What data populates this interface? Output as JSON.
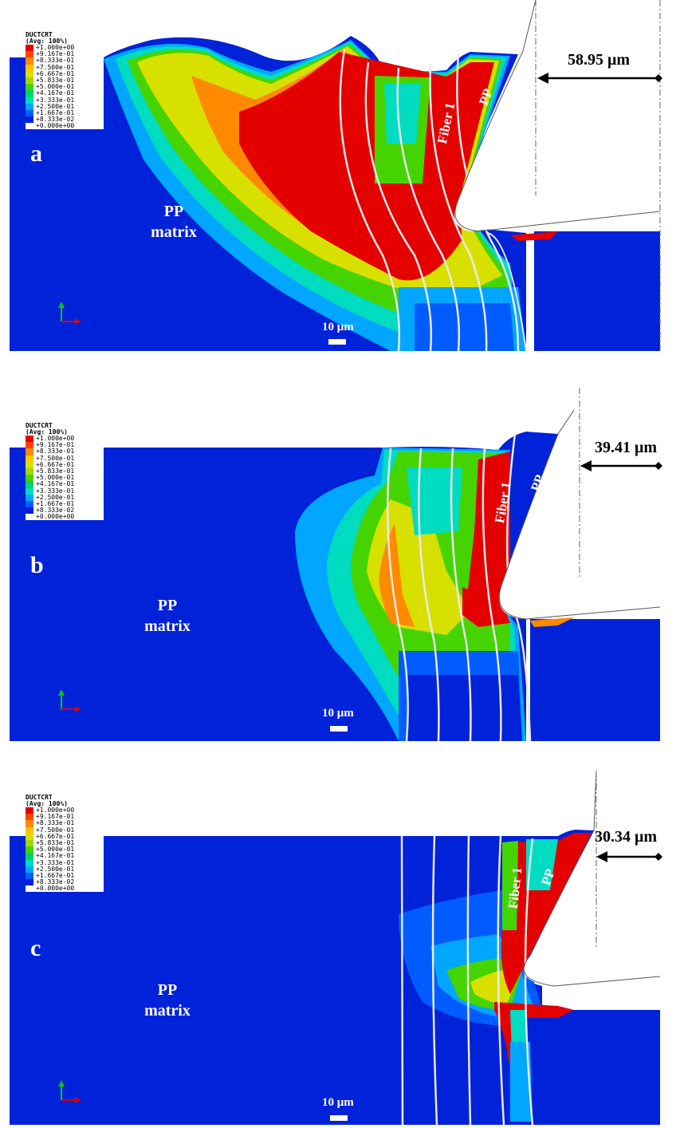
{
  "legend": {
    "title_line1": "DUCTCRT",
    "title_line2": "(Avg: 100%)",
    "entries": [
      "+1.000e+00",
      "+9.167e-01",
      "+8.333e-01",
      "+7.500e-01",
      "+6.667e-01",
      "+5.833e-01",
      "+5.000e-01",
      "+4.167e-01",
      "+3.333e-01",
      "+2.500e-01",
      "+1.667e-01",
      "+8.333e-02",
      "+0.000e+00"
    ],
    "colors": [
      "#e50000",
      "#ff4400",
      "#ff8a00",
      "#ffc400",
      "#d8e000",
      "#9ed800",
      "#46d400",
      "#00d26a",
      "#00dcc0",
      "#00a6ff",
      "#005cff",
      "#0020e0"
    ]
  },
  "labels": {
    "matrix_line1": "PP",
    "matrix_line2": "matrix",
    "fiber": "Fiber 1",
    "pp": "PP",
    "scale": "10 μm"
  },
  "panels": [
    {
      "letter": "a",
      "distance": "58.95 μm"
    },
    {
      "letter": "b",
      "distance": "39.41 μm"
    },
    {
      "letter": "c",
      "distance": "30.34 μm"
    }
  ],
  "colors": {
    "matrix_blue": "#0022d8",
    "red": "#e50000",
    "orange": "#ff8a00",
    "yellow": "#d8e000",
    "green": "#46d400",
    "cyan": "#00dcc0",
    "light_blue": "#00a6ff"
  }
}
